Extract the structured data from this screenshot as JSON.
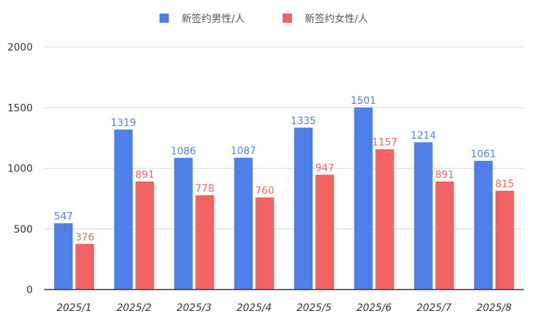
{
  "chart_data": {
    "type": "bar",
    "categories": [
      "2025/1",
      "2025/2",
      "2025/3",
      "2025/4",
      "2025/5",
      "2025/6",
      "2025/7",
      "2025/8"
    ],
    "series": [
      {
        "name": "新签约男性/人",
        "color": "#4f7fe8",
        "values": [
          547,
          1319,
          1086,
          1087,
          1335,
          1501,
          1214,
          1061
        ]
      },
      {
        "name": "新签约女性/人",
        "color": "#f26461",
        "values": [
          376,
          891,
          778,
          760,
          947,
          1157,
          891,
          815
        ]
      }
    ],
    "title": "",
    "xlabel": "",
    "ylabel": "",
    "ylim": [
      0,
      2000
    ],
    "yticks": [
      0,
      500,
      1000,
      1500,
      2000
    ],
    "grid": true,
    "legend": "top-center"
  }
}
